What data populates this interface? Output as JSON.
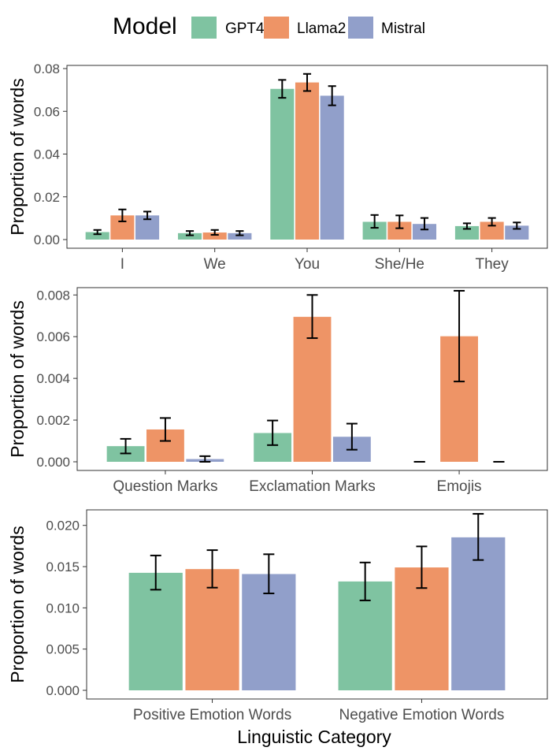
{
  "legend": {
    "title": "Model",
    "items": [
      {
        "name": "GPT4",
        "color": "#7fc3a1"
      },
      {
        "name": "Llama2",
        "color": "#ee9466"
      },
      {
        "name": "Mistral",
        "color": "#919fca"
      }
    ]
  },
  "x_axis_title": "Linguistic Category",
  "chart_data": [
    {
      "type": "bar",
      "title": "",
      "ylabel": "Proportion of words",
      "xlabel": "",
      "ylim": [
        0,
        0.08
      ],
      "yticks": [
        0.0,
        0.02,
        0.04,
        0.06,
        0.08
      ],
      "ytick_labels": [
        "0.00",
        "0.02",
        "0.04",
        "0.06",
        "0.08"
      ],
      "categories": [
        "I",
        "We",
        "You",
        "She/He",
        "They"
      ],
      "series": [
        {
          "name": "GPT4",
          "values": [
            0.0035,
            0.003,
            0.0705,
            0.0083,
            0.0063
          ],
          "err_low": [
            0.0025,
            0.002,
            0.0663,
            0.0055,
            0.005
          ],
          "err_high": [
            0.0045,
            0.004,
            0.0747,
            0.0115,
            0.0076
          ]
        },
        {
          "name": "Llama2",
          "values": [
            0.0113,
            0.0033,
            0.0735,
            0.0083,
            0.0083
          ],
          "err_low": [
            0.0085,
            0.0022,
            0.0695,
            0.0053,
            0.0065
          ],
          "err_high": [
            0.0141,
            0.0045,
            0.0775,
            0.0113,
            0.0101
          ]
        },
        {
          "name": "Mistral",
          "values": [
            0.0113,
            0.003,
            0.0673,
            0.0073,
            0.0065
          ],
          "err_low": [
            0.0095,
            0.002,
            0.0628,
            0.0047,
            0.005
          ],
          "err_high": [
            0.0131,
            0.004,
            0.0718,
            0.0101,
            0.008
          ]
        }
      ]
    },
    {
      "type": "bar",
      "title": "",
      "ylabel": "Proportion of words",
      "xlabel": "",
      "ylim": [
        0,
        0.0082
      ],
      "yticks": [
        0.0,
        0.002,
        0.004,
        0.006,
        0.008
      ],
      "ytick_labels": [
        "0.000",
        "0.002",
        "0.004",
        "0.006",
        "0.008"
      ],
      "categories": [
        "Question Marks",
        "Exclamation Marks",
        "Emojis"
      ],
      "series": [
        {
          "name": "GPT4",
          "values": [
            0.00075,
            0.00138,
            0.0
          ],
          "err_low": [
            0.0004,
            0.0008,
            0.0
          ],
          "err_high": [
            0.0011,
            0.00198,
            0.0
          ]
        },
        {
          "name": "Llama2",
          "values": [
            0.00155,
            0.00695,
            0.00602
          ],
          "err_low": [
            0.001,
            0.00593,
            0.00385
          ],
          "err_high": [
            0.0021,
            0.008,
            0.0082
          ]
        },
        {
          "name": "Mistral",
          "values": [
            0.00013,
            0.0012,
            0.0
          ],
          "err_low": [
            0.0,
            0.00058,
            0.0
          ],
          "err_high": [
            0.00027,
            0.00183,
            0.0
          ]
        }
      ]
    },
    {
      "type": "bar",
      "title": "",
      "ylabel": "Proportion of words",
      "xlabel": "Linguistic Category",
      "ylim": [
        0,
        0.0215
      ],
      "yticks": [
        0.0,
        0.005,
        0.01,
        0.015,
        0.02
      ],
      "ytick_labels": [
        "0.000",
        "0.005",
        "0.010",
        "0.015",
        "0.020"
      ],
      "categories": [
        "Positive Emotion Words",
        "Negative Emotion Words"
      ],
      "series": [
        {
          "name": "GPT4",
          "values": [
            0.01425,
            0.0132
          ],
          "err_low": [
            0.0122,
            0.0109
          ],
          "err_high": [
            0.01635,
            0.0155
          ]
        },
        {
          "name": "Llama2",
          "values": [
            0.0147,
            0.0149
          ],
          "err_low": [
            0.01245,
            0.0124
          ],
          "err_high": [
            0.017,
            0.01745
          ]
        },
        {
          "name": "Mistral",
          "values": [
            0.0141,
            0.01855
          ],
          "err_low": [
            0.01175,
            0.0158
          ],
          "err_high": [
            0.0165,
            0.0214
          ]
        }
      ]
    }
  ]
}
